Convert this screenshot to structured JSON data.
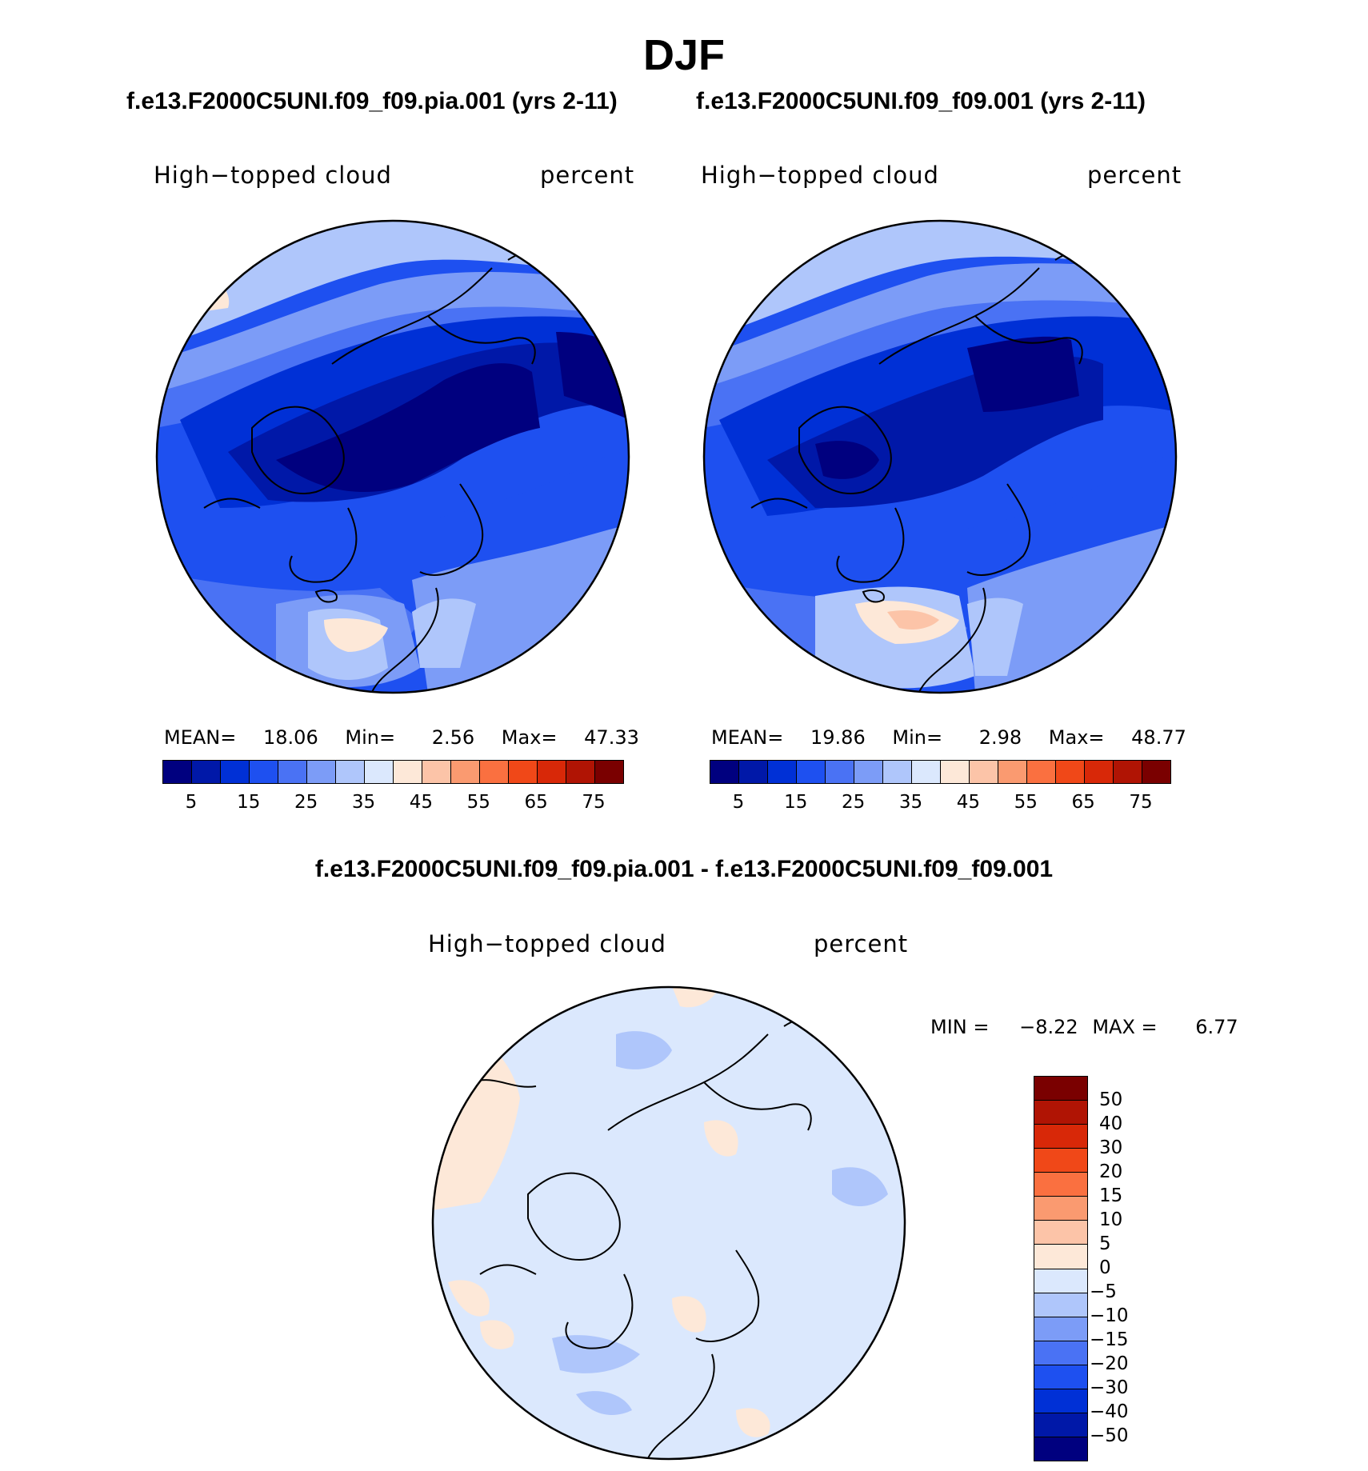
{
  "title": "DJF",
  "panels": [
    {
      "case": "f.e13.F2000C5UNI.f09_f09.pia.001 (yrs 2-11)",
      "variable": "High−topped cloud",
      "units": "percent",
      "mean_label": "MEAN=",
      "mean": "18.06",
      "min_label": "Min=",
      "min": "2.56",
      "max_label": "Max=",
      "max": "47.33"
    },
    {
      "case": "f.e13.F2000C5UNI.f09_f09.001 (yrs 2-11)",
      "variable": "High−topped cloud",
      "units": "percent",
      "mean_label": "MEAN=",
      "mean": "19.86",
      "min_label": "Min=",
      "min": "2.98",
      "max_label": "Max=",
      "max": "48.77"
    }
  ],
  "colorbar": {
    "ticks": [
      "5",
      "15",
      "25",
      "35",
      "45",
      "55",
      "65",
      "75"
    ],
    "colors": [
      "#00007f",
      "#0018a8",
      "#0030d6",
      "#1e50f0",
      "#4a72f4",
      "#7c9cf7",
      "#afc6fb",
      "#dbe8fd",
      "#fde8d8",
      "#fcc4a8",
      "#fa9a70",
      "#fa7040",
      "#f04818",
      "#d82808",
      "#b01404",
      "#7a0000"
    ]
  },
  "difference": {
    "title": "f.e13.F2000C5UNI.f09_f09.pia.001 - f.e13.F2000C5UNI.f09_f09.001",
    "variable": "High−topped cloud",
    "units": "percent",
    "min_label": "MIN =",
    "min": "−8.22",
    "max_label": "MAX =",
    "max": "6.77",
    "ticks": [
      "50",
      "40",
      "30",
      "20",
      "15",
      "10",
      "5",
      "0",
      "−5",
      "−10",
      "−15",
      "−20",
      "−30",
      "−40",
      "−50"
    ],
    "colors": [
      "#7a0000",
      "#b01404",
      "#d82808",
      "#f04818",
      "#fa7040",
      "#fa9a70",
      "#fcc4a8",
      "#fde8d8",
      "#dbe8fd",
      "#afc6fb",
      "#7c9cf7",
      "#4a72f4",
      "#1e50f0",
      "#0030d6",
      "#0018a8",
      "#00007f"
    ]
  }
}
